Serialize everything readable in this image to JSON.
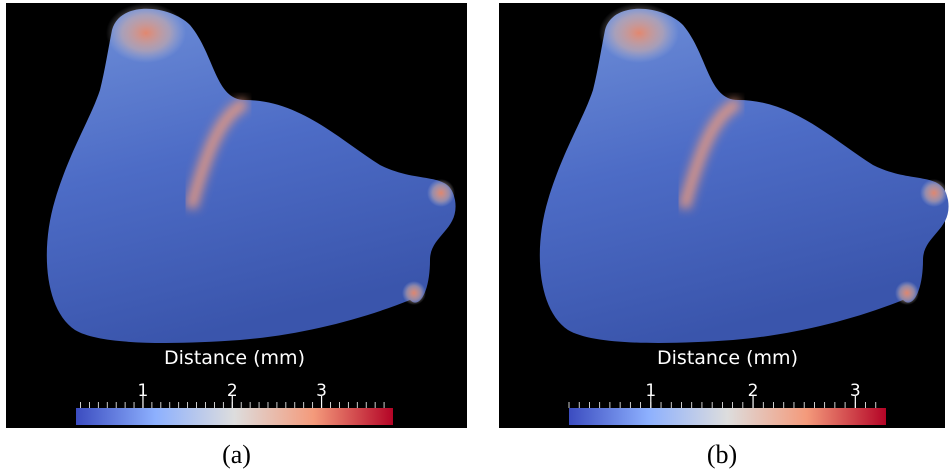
{
  "panels": [
    {
      "label": "(a)",
      "colorbar": {
        "title": "Distance (mm)",
        "range": [
          0.25,
          3.8
        ],
        "ticks": [
          1,
          2,
          3
        ]
      }
    },
    {
      "label": "(b)",
      "colorbar": {
        "title": "Distance (mm)",
        "range": [
          0.2,
          3.3
        ],
        "ticks": [
          1,
          2,
          3
        ]
      }
    }
  ]
}
